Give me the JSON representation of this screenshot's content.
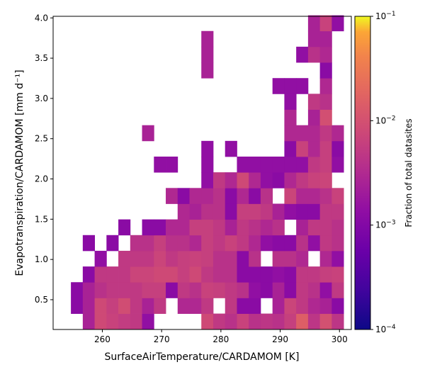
{
  "chart_data": {
    "type": "heatmap",
    "xlabel": "SurfaceAirTemperature/CARDAMOM [K]",
    "ylabel": "Evapotranspiration/CARDAMOM [mm d⁻¹]",
    "xlim": [
      251.7,
      302.0
    ],
    "ylim": [
      0.13,
      4.02
    ],
    "x_ticks": [
      260,
      270,
      280,
      290,
      300
    ],
    "x_tick_labels": [
      "260",
      "270",
      "280",
      "290",
      "300"
    ],
    "y_ticks": [
      0.5,
      1.0,
      1.5,
      2.0,
      2.5,
      3.0,
      3.5,
      4.0
    ],
    "y_tick_labels": [
      "0.5",
      "1.0",
      "1.5",
      "2.0",
      "2.5",
      "3.0",
      "3.5",
      "4.0"
    ],
    "bin_width_x": 2.0,
    "bin_height_y": 0.195,
    "colorbar": {
      "label": "Fraction of total datasites",
      "scale": "log",
      "colormap": "plasma",
      "range": [
        0.0001,
        0.1
      ],
      "ticks": [
        0.0001,
        0.001,
        0.01,
        0.1
      ],
      "tick_labels": [
        {
          "base": "10",
          "exp": "−4"
        },
        {
          "base": "10",
          "exp": "−3"
        },
        {
          "base": "10",
          "exp": "−2"
        },
        {
          "base": "10",
          "exp": "−1"
        }
      ]
    },
    "cells": [
      {
        "x": 257.7,
        "y": 0.23,
        "v": 0.0025
      },
      {
        "x": 259.7,
        "y": 0.23,
        "v": 0.008
      },
      {
        "x": 261.7,
        "y": 0.23,
        "v": 0.0065
      },
      {
        "x": 263.7,
        "y": 0.23,
        "v": 0.0055
      },
      {
        "x": 265.7,
        "y": 0.23,
        "v": 0.005
      },
      {
        "x": 267.7,
        "y": 0.23,
        "v": 0.0014
      },
      {
        "x": 277.7,
        "y": 0.23,
        "v": 0.008
      },
      {
        "x": 279.7,
        "y": 0.23,
        "v": 0.005
      },
      {
        "x": 281.7,
        "y": 0.23,
        "v": 0.004
      },
      {
        "x": 283.7,
        "y": 0.23,
        "v": 0.0065
      },
      {
        "x": 285.7,
        "y": 0.23,
        "v": 0.004
      },
      {
        "x": 287.7,
        "y": 0.23,
        "v": 0.0045
      },
      {
        "x": 289.7,
        "y": 0.23,
        "v": 0.004
      },
      {
        "x": 291.7,
        "y": 0.23,
        "v": 0.006
      },
      {
        "x": 293.7,
        "y": 0.23,
        "v": 0.015
      },
      {
        "x": 295.7,
        "y": 0.23,
        "v": 0.0045
      },
      {
        "x": 297.7,
        "y": 0.23,
        "v": 0.01
      },
      {
        "x": 299.7,
        "y": 0.23,
        "v": 0.0045
      },
      {
        "x": 255.7,
        "y": 0.425,
        "v": 0.0012
      },
      {
        "x": 257.7,
        "y": 0.425,
        "v": 0.0025
      },
      {
        "x": 259.7,
        "y": 0.425,
        "v": 0.008
      },
      {
        "x": 261.7,
        "y": 0.425,
        "v": 0.006
      },
      {
        "x": 263.7,
        "y": 0.425,
        "v": 0.009
      },
      {
        "x": 265.7,
        "y": 0.425,
        "v": 0.005
      },
      {
        "x": 267.7,
        "y": 0.425,
        "v": 0.0025
      },
      {
        "x": 269.7,
        "y": 0.425,
        "v": 0.005
      },
      {
        "x": 273.7,
        "y": 0.425,
        "v": 0.003
      },
      {
        "x": 275.7,
        "y": 0.425,
        "v": 0.003
      },
      {
        "x": 277.7,
        "y": 0.425,
        "v": 0.005
      },
      {
        "x": 281.7,
        "y": 0.425,
        "v": 0.005
      },
      {
        "x": 283.7,
        "y": 0.425,
        "v": 0.0012
      },
      {
        "x": 285.7,
        "y": 0.425,
        "v": 0.0012
      },
      {
        "x": 289.7,
        "y": 0.425,
        "v": 0.0025
      },
      {
        "x": 291.7,
        "y": 0.425,
        "v": 0.007
      },
      {
        "x": 293.7,
        "y": 0.425,
        "v": 0.005
      },
      {
        "x": 295.7,
        "y": 0.425,
        "v": 0.003
      },
      {
        "x": 297.7,
        "y": 0.425,
        "v": 0.0025
      },
      {
        "x": 299.7,
        "y": 0.425,
        "v": 0.0012
      },
      {
        "x": 255.7,
        "y": 0.62,
        "v": 0.0012
      },
      {
        "x": 257.7,
        "y": 0.62,
        "v": 0.0025
      },
      {
        "x": 259.7,
        "y": 0.62,
        "v": 0.004
      },
      {
        "x": 261.7,
        "y": 0.62,
        "v": 0.005
      },
      {
        "x": 263.7,
        "y": 0.62,
        "v": 0.005
      },
      {
        "x": 265.7,
        "y": 0.62,
        "v": 0.005
      },
      {
        "x": 267.7,
        "y": 0.62,
        "v": 0.006
      },
      {
        "x": 269.7,
        "y": 0.62,
        "v": 0.006
      },
      {
        "x": 271.7,
        "y": 0.62,
        "v": 0.0012
      },
      {
        "x": 273.7,
        "y": 0.62,
        "v": 0.005
      },
      {
        "x": 275.7,
        "y": 0.62,
        "v": 0.004
      },
      {
        "x": 277.7,
        "y": 0.62,
        "v": 0.0065
      },
      {
        "x": 279.7,
        "y": 0.62,
        "v": 0.006
      },
      {
        "x": 281.7,
        "y": 0.62,
        "v": 0.005
      },
      {
        "x": 283.7,
        "y": 0.62,
        "v": 0.004
      },
      {
        "x": 285.7,
        "y": 0.62,
        "v": 0.0014
      },
      {
        "x": 287.7,
        "y": 0.62,
        "v": 0.0012
      },
      {
        "x": 289.7,
        "y": 0.62,
        "v": 0.0025
      },
      {
        "x": 291.7,
        "y": 0.62,
        "v": 0.0012
      },
      {
        "x": 293.7,
        "y": 0.62,
        "v": 0.005
      },
      {
        "x": 295.7,
        "y": 0.62,
        "v": 0.004
      },
      {
        "x": 297.7,
        "y": 0.62,
        "v": 0.0014
      },
      {
        "x": 299.7,
        "y": 0.62,
        "v": 0.005
      },
      {
        "x": 257.7,
        "y": 0.815,
        "v": 0.0012
      },
      {
        "x": 259.7,
        "y": 0.815,
        "v": 0.005
      },
      {
        "x": 261.7,
        "y": 0.815,
        "v": 0.005
      },
      {
        "x": 263.7,
        "y": 0.815,
        "v": 0.005
      },
      {
        "x": 265.7,
        "y": 0.815,
        "v": 0.007
      },
      {
        "x": 267.7,
        "y": 0.815,
        "v": 0.007
      },
      {
        "x": 269.7,
        "y": 0.815,
        "v": 0.008
      },
      {
        "x": 271.7,
        "y": 0.815,
        "v": 0.008
      },
      {
        "x": 273.7,
        "y": 0.815,
        "v": 0.006
      },
      {
        "x": 275.7,
        "y": 0.815,
        "v": 0.008
      },
      {
        "x": 277.7,
        "y": 0.815,
        "v": 0.005
      },
      {
        "x": 279.7,
        "y": 0.815,
        "v": 0.004
      },
      {
        "x": 281.7,
        "y": 0.815,
        "v": 0.004
      },
      {
        "x": 283.7,
        "y": 0.815,
        "v": 0.0012
      },
      {
        "x": 285.7,
        "y": 0.815,
        "v": 0.0012
      },
      {
        "x": 287.7,
        "y": 0.815,
        "v": 0.0012
      },
      {
        "x": 289.7,
        "y": 0.815,
        "v": 0.0014
      },
      {
        "x": 291.7,
        "y": 0.815,
        "v": 0.0012
      },
      {
        "x": 293.7,
        "y": 0.815,
        "v": 0.005
      },
      {
        "x": 295.7,
        "y": 0.815,
        "v": 0.005
      },
      {
        "x": 297.7,
        "y": 0.815,
        "v": 0.006
      },
      {
        "x": 299.7,
        "y": 0.815,
        "v": 0.0065
      },
      {
        "x": 259.7,
        "y": 1.01,
        "v": 0.0014
      },
      {
        "x": 263.7,
        "y": 1.01,
        "v": 0.005
      },
      {
        "x": 265.7,
        "y": 1.01,
        "v": 0.005
      },
      {
        "x": 267.7,
        "y": 1.01,
        "v": 0.005
      },
      {
        "x": 269.7,
        "y": 1.01,
        "v": 0.007
      },
      {
        "x": 271.7,
        "y": 1.01,
        "v": 0.005
      },
      {
        "x": 273.7,
        "y": 1.01,
        "v": 0.006
      },
      {
        "x": 275.7,
        "y": 1.01,
        "v": 0.0065
      },
      {
        "x": 277.7,
        "y": 1.01,
        "v": 0.006
      },
      {
        "x": 279.7,
        "y": 1.01,
        "v": 0.004
      },
      {
        "x": 281.7,
        "y": 1.01,
        "v": 0.004
      },
      {
        "x": 283.7,
        "y": 1.01,
        "v": 0.0012
      },
      {
        "x": 285.7,
        "y": 1.01,
        "v": 0.004
      },
      {
        "x": 289.7,
        "y": 1.01,
        "v": 0.004
      },
      {
        "x": 291.7,
        "y": 1.01,
        "v": 0.004
      },
      {
        "x": 293.7,
        "y": 1.01,
        "v": 0.003
      },
      {
        "x": 297.7,
        "y": 1.01,
        "v": 0.003
      },
      {
        "x": 299.7,
        "y": 1.01,
        "v": 0.0014
      },
      {
        "x": 257.7,
        "y": 1.205,
        "v": 0.0012
      },
      {
        "x": 261.7,
        "y": 1.205,
        "v": 0.0012
      },
      {
        "x": 265.7,
        "y": 1.205,
        "v": 0.004
      },
      {
        "x": 267.7,
        "y": 1.205,
        "v": 0.004
      },
      {
        "x": 269.7,
        "y": 1.205,
        "v": 0.006
      },
      {
        "x": 271.7,
        "y": 1.205,
        "v": 0.004
      },
      {
        "x": 273.7,
        "y": 1.205,
        "v": 0.004
      },
      {
        "x": 275.7,
        "y": 1.205,
        "v": 0.003
      },
      {
        "x": 277.7,
        "y": 1.205,
        "v": 0.006
      },
      {
        "x": 279.7,
        "y": 1.205,
        "v": 0.005
      },
      {
        "x": 281.7,
        "y": 1.205,
        "v": 0.0065
      },
      {
        "x": 283.7,
        "y": 1.205,
        "v": 0.005
      },
      {
        "x": 285.7,
        "y": 1.205,
        "v": 0.003
      },
      {
        "x": 287.7,
        "y": 1.205,
        "v": 0.0014
      },
      {
        "x": 289.7,
        "y": 1.205,
        "v": 0.0012
      },
      {
        "x": 291.7,
        "y": 1.205,
        "v": 0.0012
      },
      {
        "x": 293.7,
        "y": 1.205,
        "v": 0.004
      },
      {
        "x": 295.7,
        "y": 1.205,
        "v": 0.0014
      },
      {
        "x": 297.7,
        "y": 1.205,
        "v": 0.005
      },
      {
        "x": 299.7,
        "y": 1.205,
        "v": 0.004
      },
      {
        "x": 263.7,
        "y": 1.4,
        "v": 0.0012
      },
      {
        "x": 267.7,
        "y": 1.4,
        "v": 0.0012
      },
      {
        "x": 269.7,
        "y": 1.4,
        "v": 0.0012
      },
      {
        "x": 271.7,
        "y": 1.4,
        "v": 0.003
      },
      {
        "x": 273.7,
        "y": 1.4,
        "v": 0.003
      },
      {
        "x": 275.7,
        "y": 1.4,
        "v": 0.006
      },
      {
        "x": 277.7,
        "y": 1.4,
        "v": 0.006
      },
      {
        "x": 279.7,
        "y": 1.4,
        "v": 0.005
      },
      {
        "x": 281.7,
        "y": 1.4,
        "v": 0.0025
      },
      {
        "x": 283.7,
        "y": 1.4,
        "v": 0.005
      },
      {
        "x": 285.7,
        "y": 1.4,
        "v": 0.004
      },
      {
        "x": 287.7,
        "y": 1.4,
        "v": 0.003
      },
      {
        "x": 289.7,
        "y": 1.4,
        "v": 0.004
      },
      {
        "x": 293.7,
        "y": 1.4,
        "v": 0.0025
      },
      {
        "x": 295.7,
        "y": 1.4,
        "v": 0.005
      },
      {
        "x": 297.7,
        "y": 1.4,
        "v": 0.005
      },
      {
        "x": 299.7,
        "y": 1.4,
        "v": 0.004
      },
      {
        "x": 273.7,
        "y": 1.595,
        "v": 0.003
      },
      {
        "x": 275.7,
        "y": 1.595,
        "v": 0.0025
      },
      {
        "x": 277.7,
        "y": 1.595,
        "v": 0.004
      },
      {
        "x": 279.7,
        "y": 1.595,
        "v": 0.004
      },
      {
        "x": 281.7,
        "y": 1.595,
        "v": 0.0012
      },
      {
        "x": 283.7,
        "y": 1.595,
        "v": 0.006
      },
      {
        "x": 285.7,
        "y": 1.595,
        "v": 0.006
      },
      {
        "x": 287.7,
        "y": 1.595,
        "v": 0.005
      },
      {
        "x": 289.7,
        "y": 1.595,
        "v": 0.0025
      },
      {
        "x": 291.7,
        "y": 1.595,
        "v": 0.0014
      },
      {
        "x": 293.7,
        "y": 1.595,
        "v": 0.0012
      },
      {
        "x": 295.7,
        "y": 1.595,
        "v": 0.0012
      },
      {
        "x": 297.7,
        "y": 1.595,
        "v": 0.005
      },
      {
        "x": 299.7,
        "y": 1.595,
        "v": 0.005
      },
      {
        "x": 271.7,
        "y": 1.79,
        "v": 0.003
      },
      {
        "x": 273.7,
        "y": 1.79,
        "v": 0.0012
      },
      {
        "x": 275.7,
        "y": 1.79,
        "v": 0.003
      },
      {
        "x": 277.7,
        "y": 1.79,
        "v": 0.003
      },
      {
        "x": 279.7,
        "y": 1.79,
        "v": 0.004
      },
      {
        "x": 281.7,
        "y": 1.79,
        "v": 0.0012
      },
      {
        "x": 283.7,
        "y": 1.79,
        "v": 0.003
      },
      {
        "x": 285.7,
        "y": 1.79,
        "v": 0.0012
      },
      {
        "x": 287.7,
        "y": 1.79,
        "v": 0.004
      },
      {
        "x": 291.7,
        "y": 1.79,
        "v": 0.007
      },
      {
        "x": 293.7,
        "y": 1.79,
        "v": 0.003
      },
      {
        "x": 295.7,
        "y": 1.79,
        "v": 0.003
      },
      {
        "x": 297.7,
        "y": 1.79,
        "v": 0.004
      },
      {
        "x": 299.7,
        "y": 1.79,
        "v": 0.0065
      },
      {
        "x": 277.7,
        "y": 1.985,
        "v": 0.0014
      },
      {
        "x": 279.7,
        "y": 1.985,
        "v": 0.005
      },
      {
        "x": 281.7,
        "y": 1.985,
        "v": 0.003
      },
      {
        "x": 283.7,
        "y": 1.985,
        "v": 0.008
      },
      {
        "x": 285.7,
        "y": 1.985,
        "v": 0.003
      },
      {
        "x": 287.7,
        "y": 1.985,
        "v": 0.0014
      },
      {
        "x": 289.7,
        "y": 1.985,
        "v": 0.0012
      },
      {
        "x": 291.7,
        "y": 1.985,
        "v": 0.003
      },
      {
        "x": 293.7,
        "y": 1.985,
        "v": 0.005
      },
      {
        "x": 295.7,
        "y": 1.985,
        "v": 0.0065
      },
      {
        "x": 297.7,
        "y": 1.985,
        "v": 0.007
      },
      {
        "x": 269.7,
        "y": 2.18,
        "v": 0.0014
      },
      {
        "x": 271.7,
        "y": 2.18,
        "v": 0.0014
      },
      {
        "x": 277.7,
        "y": 2.18,
        "v": 0.0014
      },
      {
        "x": 283.7,
        "y": 2.18,
        "v": 0.0014
      },
      {
        "x": 285.7,
        "y": 2.18,
        "v": 0.0014
      },
      {
        "x": 287.7,
        "y": 2.18,
        "v": 0.0014
      },
      {
        "x": 289.7,
        "y": 2.18,
        "v": 0.0014
      },
      {
        "x": 291.7,
        "y": 2.18,
        "v": 0.0014
      },
      {
        "x": 293.7,
        "y": 2.18,
        "v": 0.0014
      },
      {
        "x": 295.7,
        "y": 2.18,
        "v": 0.005
      },
      {
        "x": 297.7,
        "y": 2.18,
        "v": 0.006
      },
      {
        "x": 299.7,
        "y": 2.18,
        "v": 0.0014
      },
      {
        "x": 277.7,
        "y": 2.375,
        "v": 0.0014
      },
      {
        "x": 281.7,
        "y": 2.375,
        "v": 0.0014
      },
      {
        "x": 291.7,
        "y": 2.375,
        "v": 0.0012
      },
      {
        "x": 293.7,
        "y": 2.375,
        "v": 0.0065
      },
      {
        "x": 295.7,
        "y": 2.375,
        "v": 0.003
      },
      {
        "x": 297.7,
        "y": 2.375,
        "v": 0.006
      },
      {
        "x": 299.7,
        "y": 2.375,
        "v": 0.0012
      },
      {
        "x": 267.7,
        "y": 2.57,
        "v": 0.0025
      },
      {
        "x": 291.7,
        "y": 2.57,
        "v": 0.003
      },
      {
        "x": 293.7,
        "y": 2.57,
        "v": 0.003
      },
      {
        "x": 295.7,
        "y": 2.57,
        "v": 0.003
      },
      {
        "x": 297.7,
        "y": 2.57,
        "v": 0.005
      },
      {
        "x": 299.7,
        "y": 2.57,
        "v": 0.003
      },
      {
        "x": 291.7,
        "y": 2.765,
        "v": 0.003
      },
      {
        "x": 295.7,
        "y": 2.765,
        "v": 0.0025
      },
      {
        "x": 297.7,
        "y": 2.765,
        "v": 0.0095
      },
      {
        "x": 291.7,
        "y": 2.96,
        "v": 0.0014
      },
      {
        "x": 295.7,
        "y": 2.96,
        "v": 0.005
      },
      {
        "x": 297.7,
        "y": 2.96,
        "v": 0.004
      },
      {
        "x": 289.7,
        "y": 3.155,
        "v": 0.0014
      },
      {
        "x": 291.7,
        "y": 3.155,
        "v": 0.0014
      },
      {
        "x": 293.7,
        "y": 3.155,
        "v": 0.0014
      },
      {
        "x": 297.7,
        "y": 3.155,
        "v": 0.003
      },
      {
        "x": 297.7,
        "y": 3.35,
        "v": 0.0012
      },
      {
        "x": 293.7,
        "y": 3.545,
        "v": 0.0014
      },
      {
        "x": 295.7,
        "y": 3.545,
        "v": 0.004
      },
      {
        "x": 297.7,
        "y": 3.545,
        "v": 0.003
      },
      {
        "x": 297.7,
        "y": 3.74,
        "v": 0.0025
      },
      {
        "x": 277.7,
        "y": 3.35,
        "v": 0.0025
      },
      {
        "x": 277.7,
        "y": 3.545,
        "v": 0.0025
      },
      {
        "x": 277.7,
        "y": 3.74,
        "v": 0.0025
      },
      {
        "x": 295.7,
        "y": 3.74,
        "v": 0.0025
      },
      {
        "x": 295.7,
        "y": 3.935,
        "v": 0.0025
      },
      {
        "x": 297.7,
        "y": 3.935,
        "v": 0.0065
      },
      {
        "x": 299.7,
        "y": 3.935,
        "v": 0.0014
      }
    ]
  }
}
